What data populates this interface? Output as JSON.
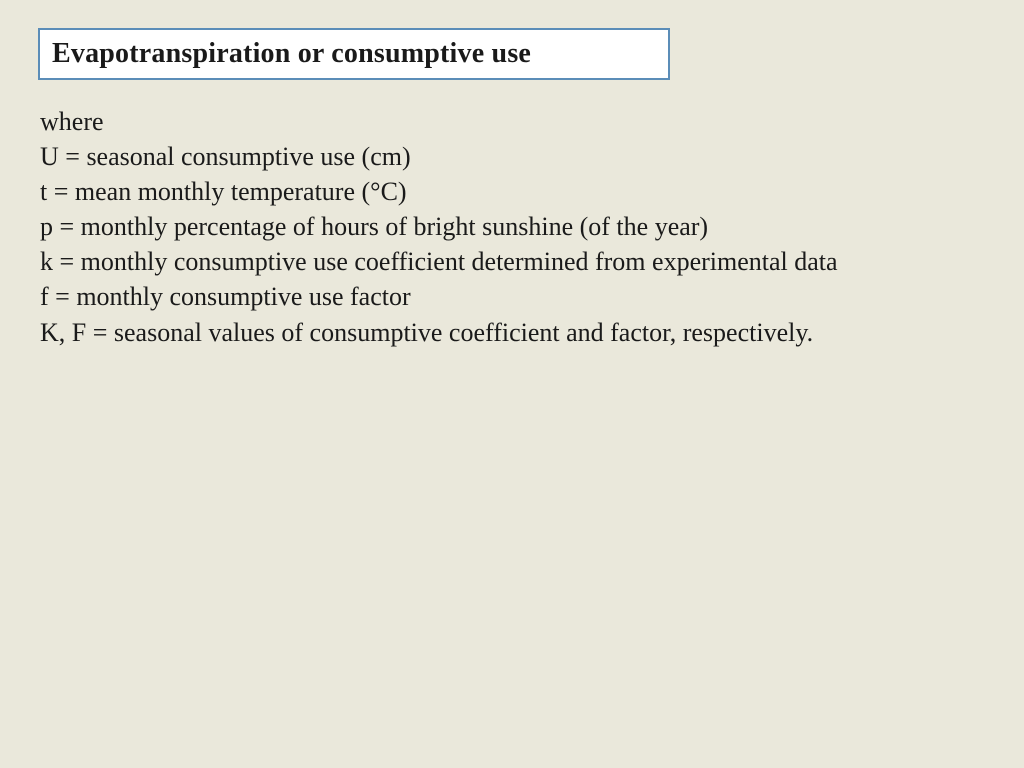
{
  "slide": {
    "background_color": "#eae8db",
    "title": {
      "text": "Evapotranspiration or consumptive use",
      "font_size": 28,
      "font_weight": "bold",
      "color": "#1a1a1a",
      "box_background": "#ffffff",
      "box_border_color": "#5b8db8",
      "box_border_width": 2
    },
    "body": {
      "font_size": 26,
      "color": "#1a1a1a",
      "lines": {
        "l0": "where",
        "l1": "U = seasonal consumptive use (cm)",
        "l2": "t = mean monthly temperature (°C)",
        "l3": "p = monthly percentage of hours of bright sunshine (of the year)",
        "l4": "k = monthly consumptive use coefficient determined from experimental data",
        "l5": "f = monthly consumptive use factor",
        "l6": "K, F = seasonal values of consumptive coefficient and factor, respectively."
      }
    }
  }
}
